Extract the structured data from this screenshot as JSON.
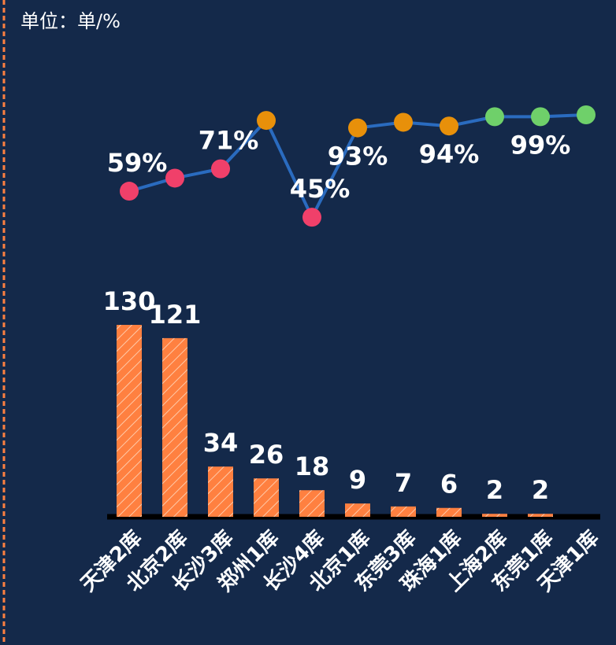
{
  "chart_data": {
    "type": "bar_line",
    "title": "单位：单/%",
    "categories": [
      "天津2库",
      "北京2库",
      "长沙3库",
      "郑州1库",
      "长沙4库",
      "北京1库",
      "东莞3库",
      "珠海1库",
      "上海2库",
      "东莞1库",
      "天津1库"
    ],
    "series": [
      {
        "type": "bar",
        "color": "#ff8040",
        "values": [
          130,
          121,
          34,
          26,
          18,
          9,
          7,
          6,
          2,
          2,
          null
        ]
      },
      {
        "type": "line",
        "axis": "y2",
        "color": "#2a6bbf",
        "point_colors": [
          "#f0406a",
          "#f0406a",
          "#f0406a",
          "#e8900a",
          "#f0406a",
          "#e8900a",
          "#e8900a",
          "#e8900a",
          "#6fd06a",
          "#6fd06a",
          "#6fd06a"
        ],
        "values": [
          59,
          66,
          71,
          97,
          45,
          93,
          96,
          94,
          99,
          99,
          100
        ],
        "value_labels": [
          "59%",
          null,
          "71%",
          null,
          "45%",
          "93%",
          null,
          "94%",
          null,
          "99%",
          null
        ]
      }
    ],
    "ylim": [
      0,
      130
    ],
    "y2lim": [
      40,
      100
    ]
  }
}
